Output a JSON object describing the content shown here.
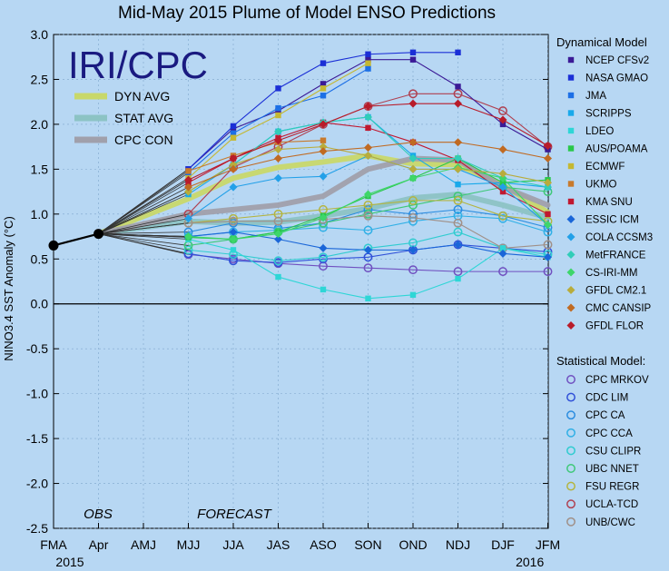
{
  "chart_data": {
    "type": "line",
    "title": "Mid-May 2015 Plume of Model ENSO Predictions",
    "ylabel": "NINO3.4 SST Anomaly (°C)",
    "ylim": [
      -2.5,
      3.0
    ],
    "yticks": [
      "3.0",
      "2.5",
      "2.0",
      "1.5",
      "1.0",
      "0.5",
      "0.0",
      "-0.5",
      "-1.0",
      "-1.5",
      "-2.0",
      "-2.5"
    ],
    "categories": [
      "FMA",
      "Apr",
      "AMJ",
      "MJJ",
      "JJA",
      "JAS",
      "ASO",
      "SON",
      "OND",
      "NDJ",
      "DJF",
      "JFM"
    ],
    "year_labels": [
      {
        "text": "2015",
        "index": 0
      },
      {
        "text": "2016",
        "index": 10.6
      }
    ],
    "overlay_title": "IRI/CPC",
    "obs_label": "OBS",
    "forecast_label": "FORECAST",
    "obs_values": [
      0.65,
      0.78
    ],
    "dynamical_title": "Dynamical Model",
    "statistical_title": "Statistical Model:",
    "averages": [
      {
        "name": "DYN AVG",
        "color": "#c8d86a",
        "values": [
          1.17,
          1.4,
          1.52,
          1.58,
          1.65,
          1.56,
          1.55,
          1.32,
          1.02
        ]
      },
      {
        "name": "STAT AVG",
        "color": "#8cc3c4",
        "values": [
          0.92,
          0.9,
          0.91,
          0.98,
          1.06,
          1.18,
          1.22,
          1.1,
          0.96
        ]
      },
      {
        "name": "CPC CON",
        "color": "#a0a0ab",
        "values": [
          1.0,
          1.05,
          1.1,
          1.2,
          1.5,
          1.62,
          1.6,
          1.3,
          1.1
        ]
      }
    ],
    "dynamical_models": [
      {
        "name": "NCEP CFSv2",
        "color": "#3b1a96",
        "values": [
          1.5,
          1.95,
          2.15,
          2.45,
          2.72,
          2.72,
          2.42,
          2.0,
          1.72
        ]
      },
      {
        "name": "NASA GMAO",
        "color": "#1b2fd6",
        "values": [
          1.5,
          1.98,
          2.4,
          2.68,
          2.78,
          2.8,
          2.8,
          null,
          null
        ]
      },
      {
        "name": "JMA",
        "color": "#1c6fe6",
        "values": [
          1.46,
          1.9,
          2.18,
          2.32,
          2.62,
          null,
          null,
          null,
          null
        ]
      },
      {
        "name": "SCRIPPS",
        "color": "#18a9ea",
        "values": [
          1.22,
          1.55,
          1.92,
          2.02,
          2.08,
          1.65,
          1.33,
          1.35,
          1.3
        ]
      },
      {
        "name": "LDEO",
        "color": "#2ed6d6",
        "values": [
          0.72,
          0.6,
          0.3,
          0.16,
          0.06,
          0.1,
          0.28,
          0.62,
          0.52
        ]
      },
      {
        "name": "AUS/POAMA",
        "color": "#29c74a",
        "values": [
          0.74,
          0.72,
          0.8,
          0.98,
          1.2,
          1.4,
          1.62,
          1.35,
          1.38
        ]
      },
      {
        "name": "ECMWF",
        "color": "#c4b832",
        "values": [
          1.4,
          1.85,
          2.1,
          2.4,
          2.68,
          null,
          null,
          null,
          null
        ]
      },
      {
        "name": "UKMO",
        "color": "#c87a2c",
        "values": [
          1.48,
          1.65,
          1.8,
          1.82,
          null,
          null,
          null,
          null,
          null
        ]
      },
      {
        "name": "KMA SNU",
        "color": "#c01830",
        "values": [
          1.35,
          1.62,
          1.85,
          2.02,
          1.96,
          1.8,
          1.6,
          1.25,
          1.0
        ]
      },
      {
        "name": "ESSIC ICM",
        "color": "#1a66d8",
        "values": [
          0.75,
          0.8,
          0.72,
          0.62,
          0.6,
          0.6,
          0.66,
          0.56,
          0.52
        ]
      },
      {
        "name": "COLA CCSM3",
        "color": "#22a0e8",
        "values": [
          0.95,
          1.3,
          1.4,
          1.42,
          1.65,
          1.5,
          1.5,
          1.3,
          0.88
        ]
      },
      {
        "name": "MetFRANCE",
        "color": "#30cdb8",
        "values": [
          1.25,
          1.55,
          1.92,
          2.02,
          2.08,
          1.62,
          1.62,
          1.4,
          1.3
        ]
      },
      {
        "name": "CS-IRI-MM",
        "color": "#3ed66a",
        "values": [
          0.75,
          0.72,
          0.78,
          0.96,
          1.22,
          1.4,
          1.52,
          1.4,
          0.88
        ]
      },
      {
        "name": "GFDL CM2.1",
        "color": "#b8ac3c",
        "values": [
          1.25,
          1.55,
          1.72,
          1.75,
          1.65,
          1.5,
          1.5,
          1.45,
          1.35
        ]
      },
      {
        "name": "CMC CANSIP",
        "color": "#c06a22",
        "values": [
          1.3,
          1.5,
          1.62,
          1.7,
          1.74,
          1.8,
          1.8,
          1.72,
          1.62
        ]
      },
      {
        "name": "GFDL FLOR",
        "color": "#b81c2a",
        "values": [
          1.38,
          1.62,
          1.82,
          2.0,
          2.2,
          2.23,
          2.23,
          2.05,
          1.76
        ]
      }
    ],
    "statistical_models": [
      {
        "name": "CPC MRKOV",
        "color": "#7050c0",
        "values": [
          0.55,
          0.5,
          0.45,
          0.42,
          0.4,
          0.38,
          0.36,
          0.36,
          0.36
        ]
      },
      {
        "name": "CDC LIM",
        "color": "#3050d8",
        "values": [
          0.56,
          0.48,
          0.46,
          0.5,
          0.52,
          0.6,
          0.66,
          0.62,
          0.58
        ]
      },
      {
        "name": "CPC CA",
        "color": "#2a8ce0",
        "values": [
          0.8,
          0.9,
          0.84,
          0.9,
          1.05,
          1.0,
          1.05,
          0.98,
          0.85
        ]
      },
      {
        "name": "CPC CCA",
        "color": "#30b0e6",
        "values": [
          0.75,
          0.8,
          0.82,
          0.85,
          0.82,
          0.92,
          0.98,
          0.95,
          0.8
        ]
      },
      {
        "name": "CSU CLIPR",
        "color": "#30ccd0",
        "values": [
          0.6,
          0.55,
          0.48,
          0.52,
          0.62,
          0.68,
          0.8,
          0.62,
          0.55
        ]
      },
      {
        "name": "UBC NNET",
        "color": "#3ec878",
        "values": [
          0.65,
          0.72,
          0.8,
          0.9,
          1.0,
          1.1,
          1.2,
          1.3,
          1.25
        ]
      },
      {
        "name": "FSU REGR",
        "color": "#b4b440",
        "values": [
          0.9,
          0.95,
          1.0,
          1.05,
          1.1,
          1.15,
          1.15,
          0.98,
          0.92
        ]
      },
      {
        "name": "UCLA-TCD",
        "color": "#b04050",
        "values": [
          1.0,
          1.52,
          1.75,
          2.0,
          2.2,
          2.34,
          2.34,
          2.15,
          1.75
        ]
      },
      {
        "name": "UNB/CWC",
        "color": "#a09088",
        "values": [
          0.9,
          0.92,
          0.92,
          0.94,
          0.98,
          0.96,
          0.9,
          0.62,
          0.66
        ]
      }
    ]
  }
}
